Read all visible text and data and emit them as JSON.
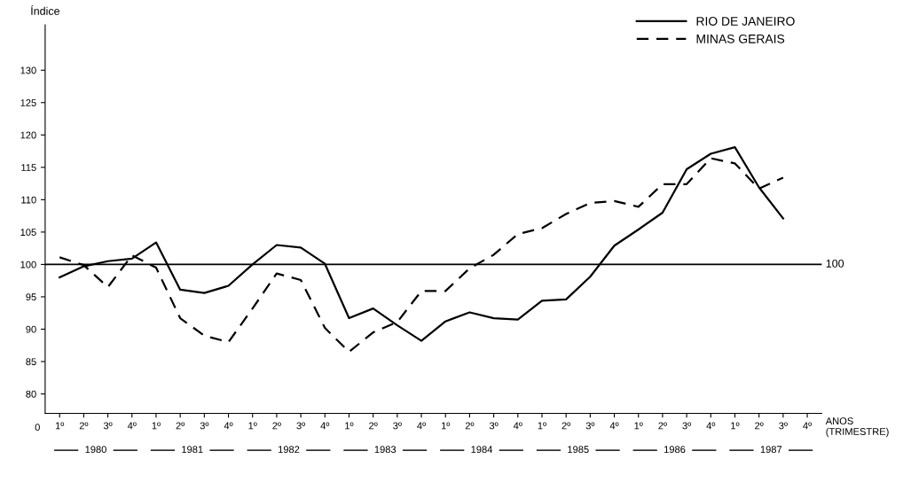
{
  "chart_data": {
    "type": "line",
    "ylabel": "Índice",
    "xlabel": "ANOS\n(TRIMESTRE)",
    "categories": [
      "1º",
      "2º",
      "3º",
      "4º",
      "1º",
      "2º",
      "3º",
      "4º",
      "1º",
      "2º",
      "3º",
      "4º",
      "1º",
      "2º",
      "3º",
      "4º",
      "1º",
      "2º",
      "3º",
      "4º",
      "1º",
      "2º",
      "3º",
      "4º",
      "1º",
      "2º",
      "3º",
      "4º",
      "1º",
      "2º",
      "3º",
      "4º"
    ],
    "series": [
      {
        "name": "RIO DE JANEIRO",
        "color": "#000000",
        "line_style": "solid",
        "values": [
          98.0,
          99.7,
          100.5,
          100.9,
          103.4,
          96.1,
          95.6,
          96.7,
          100.0,
          103.0,
          102.6,
          100.1,
          91.7,
          93.2,
          90.6,
          88.2,
          91.2,
          92.6,
          91.7,
          91.5,
          94.4,
          94.6,
          98.1,
          102.9,
          105.4,
          108.0,
          114.7,
          117.1,
          118.1,
          111.9,
          107.1,
          null
        ]
      },
      {
        "name": "MINAS GERAIS",
        "color": "#000000",
        "line_style": "dashed",
        "values": [
          101.1,
          99.9,
          96.5,
          101.4,
          99.5,
          91.7,
          89.0,
          88.0,
          93.2,
          98.6,
          97.6,
          90.2,
          86.5,
          89.5,
          91.1,
          95.9,
          95.9,
          99.4,
          101.5,
          104.7,
          105.6,
          107.8,
          109.5,
          109.8,
          108.9,
          112.4,
          112.4,
          116.4,
          115.6,
          111.7,
          113.4,
          null
        ]
      }
    ],
    "ylim": [
      77,
      137
    ],
    "yticks": [
      80,
      85,
      90,
      95,
      100,
      105,
      110,
      115,
      120,
      125,
      130
    ],
    "ref_lines": [
      {
        "axis": "y",
        "value": 100,
        "label": "100",
        "color": "#000000",
        "line_style": "solid"
      }
    ],
    "annotations": [
      "0",
      "1980",
      "1981",
      "1982",
      "1983",
      "1984",
      "1985",
      "1986",
      "1987"
    ],
    "legend": "top right",
    "grid": false,
    "marker": "none"
  }
}
